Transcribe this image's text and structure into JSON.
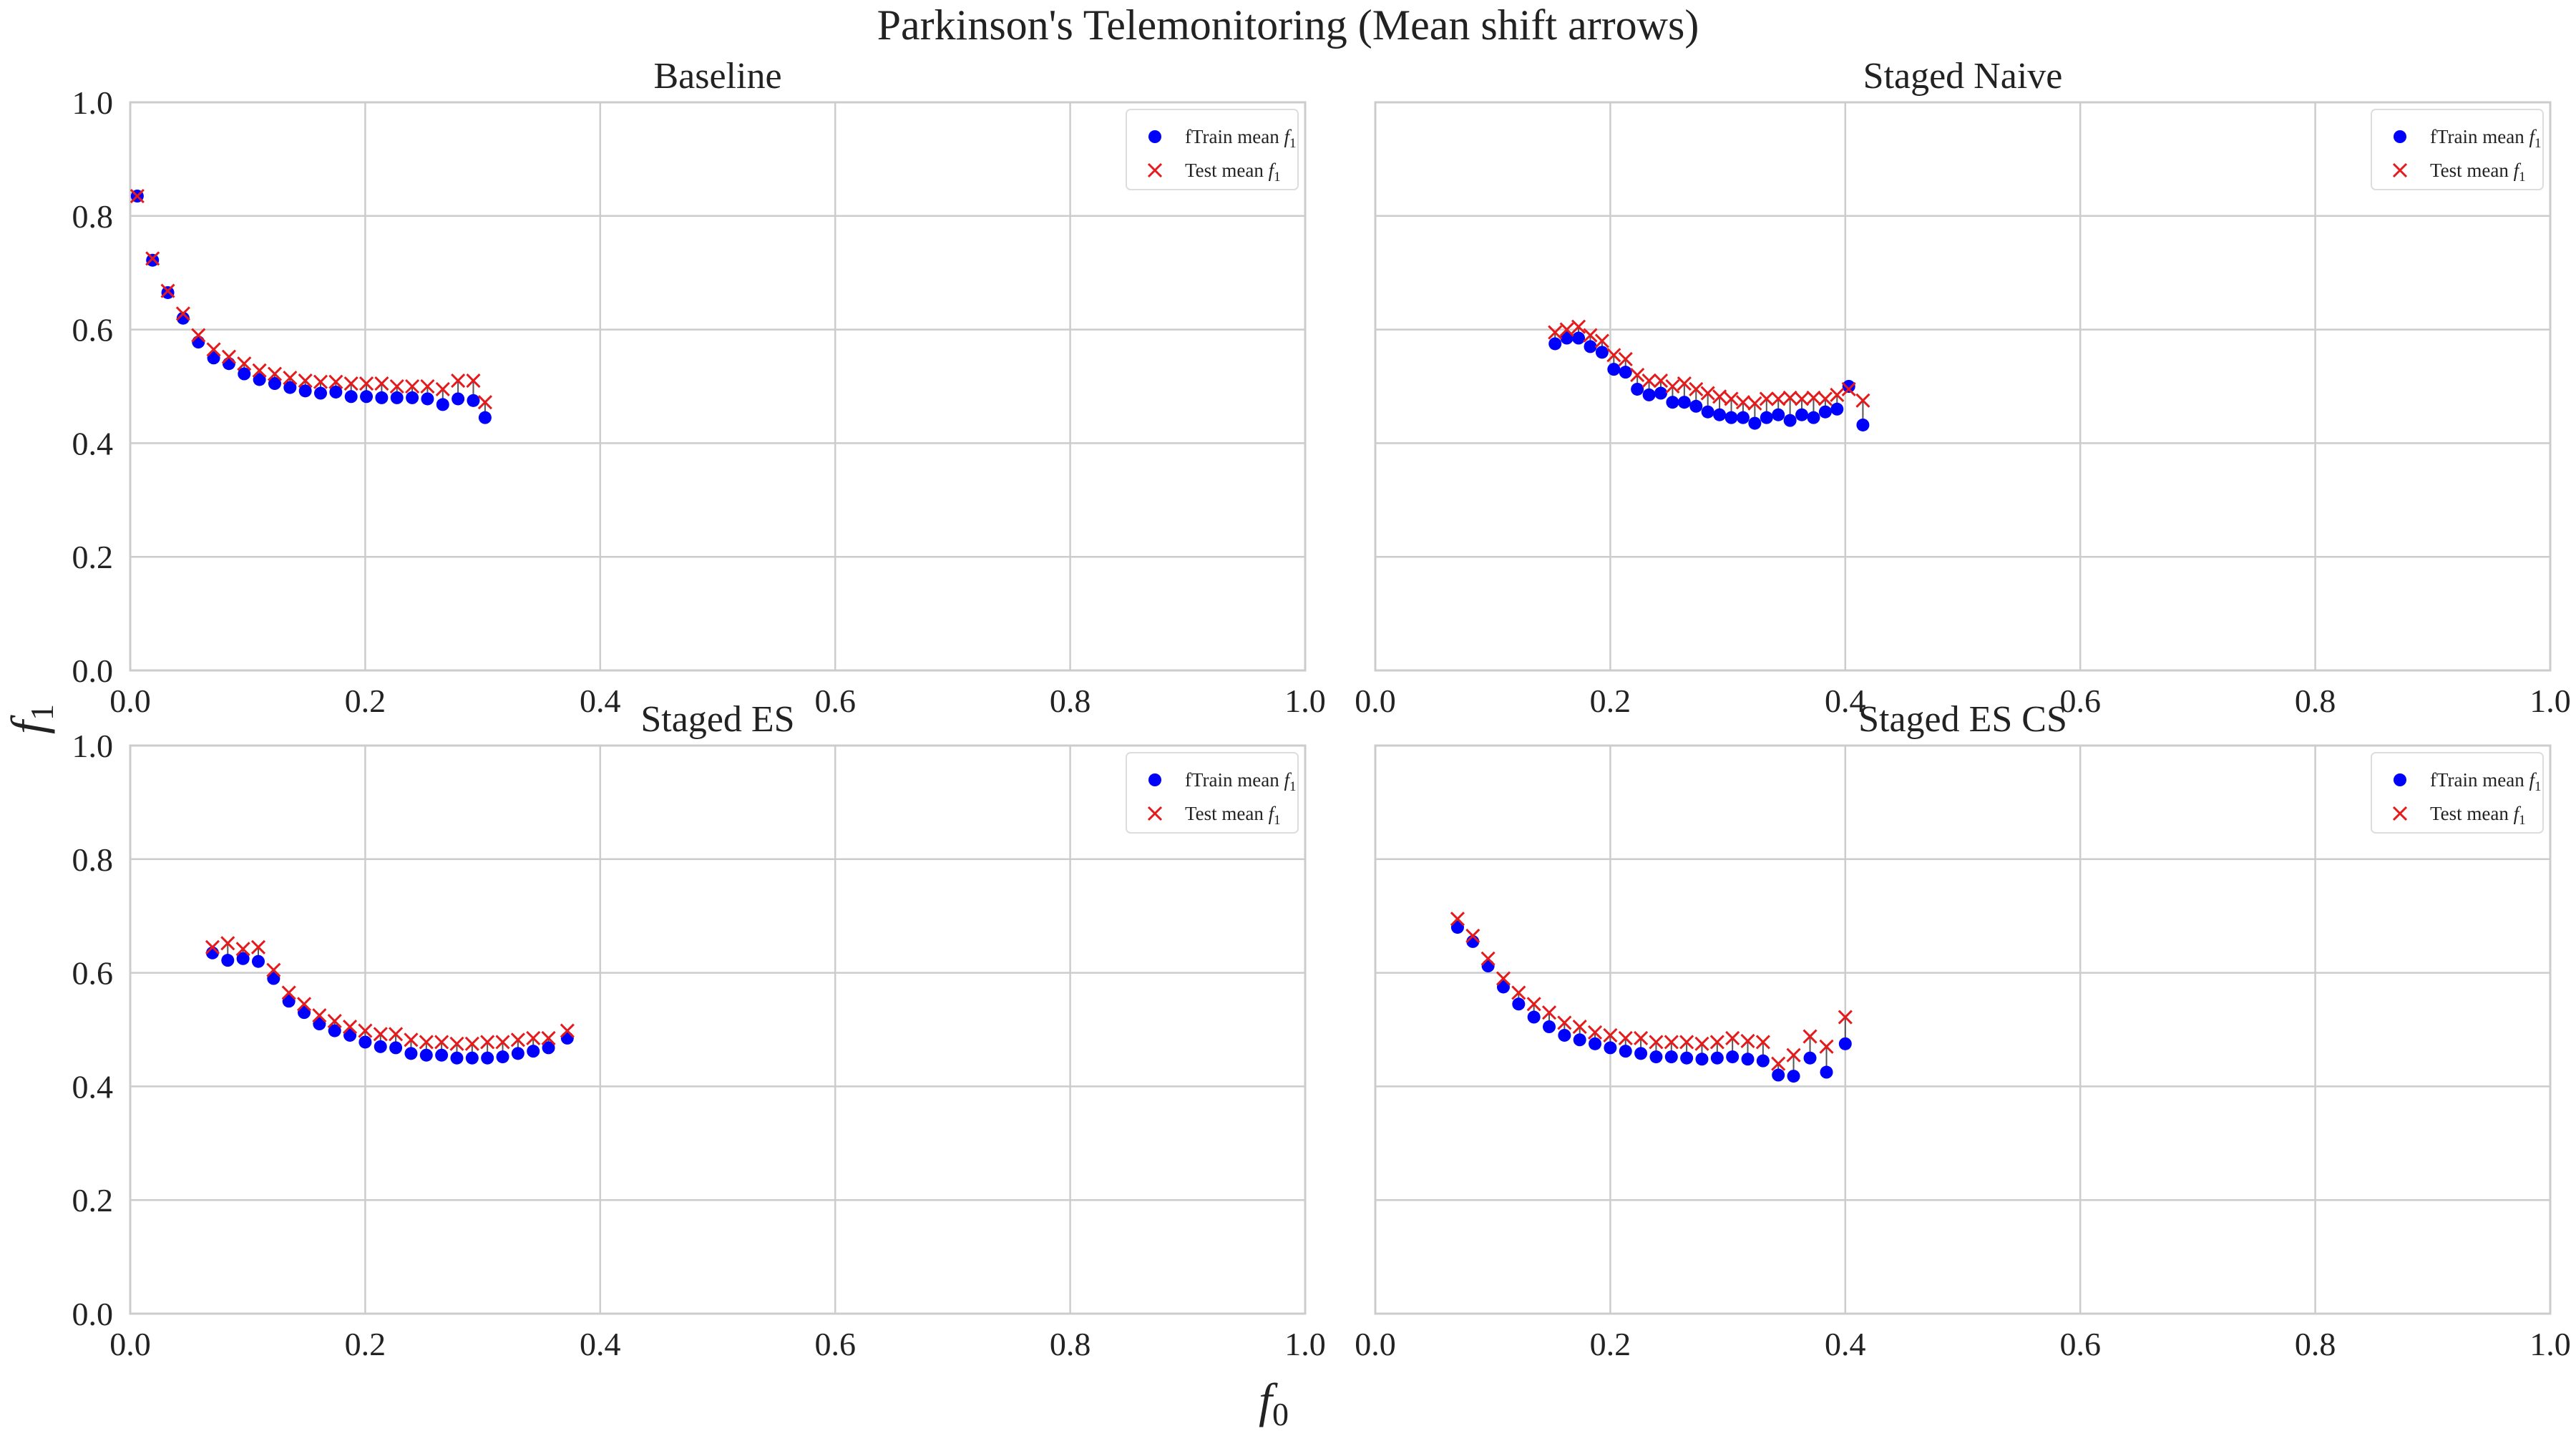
{
  "figure_title": "Parkinson's Telemonitoring (Mean shift arrows)",
  "axis_labels": {
    "x_base": "f",
    "x_sub": "0",
    "y_base": "f",
    "y_sub": "1"
  },
  "legend": {
    "train_label": "fTrain mean ",
    "train_sub_base": "f",
    "train_sub": "1",
    "test_label": "Test mean ",
    "test_sub_base": "f",
    "test_sub": "1"
  },
  "colors": {
    "train": "#0000ff",
    "test": "#e41a1c",
    "arrow": "#555555",
    "grid": "#cccccc",
    "frame": "#cccccc"
  },
  "chart_data": [
    {
      "type": "scatter",
      "title": "Baseline",
      "xlim": [
        0,
        1
      ],
      "ylim": [
        0,
        1
      ],
      "xticks": [
        "0.0",
        "0.2",
        "0.4",
        "0.6",
        "0.8",
        "1.0"
      ],
      "yticks": [
        "0.0",
        "0.2",
        "0.4",
        "0.6",
        "0.8",
        "1.0"
      ],
      "series": [
        {
          "name": "fTrain mean f1",
          "marker": "dot",
          "x": [
            0.006,
            0.019,
            0.032,
            0.045,
            0.058,
            0.071,
            0.084,
            0.097,
            0.11,
            0.123,
            0.136,
            0.149,
            0.162,
            0.175,
            0.188,
            0.201,
            0.214,
            0.227,
            0.24,
            0.253,
            0.266,
            0.279,
            0.292,
            0.302
          ],
          "y": [
            0.835,
            0.722,
            0.665,
            0.62,
            0.578,
            0.55,
            0.54,
            0.522,
            0.512,
            0.505,
            0.498,
            0.492,
            0.488,
            0.49,
            0.482,
            0.482,
            0.48,
            0.48,
            0.48,
            0.478,
            0.468,
            0.478,
            0.475,
            0.445
          ]
        },
        {
          "name": "Test mean f1",
          "marker": "x",
          "x": [
            0.006,
            0.019,
            0.032,
            0.045,
            0.058,
            0.071,
            0.084,
            0.097,
            0.11,
            0.123,
            0.136,
            0.149,
            0.162,
            0.175,
            0.188,
            0.201,
            0.214,
            0.227,
            0.24,
            0.253,
            0.266,
            0.279,
            0.292,
            0.302
          ],
          "y": [
            0.835,
            0.725,
            0.668,
            0.628,
            0.59,
            0.565,
            0.552,
            0.54,
            0.528,
            0.522,
            0.515,
            0.51,
            0.508,
            0.508,
            0.505,
            0.505,
            0.505,
            0.5,
            0.5,
            0.5,
            0.495,
            0.51,
            0.51,
            0.472
          ]
        }
      ]
    },
    {
      "type": "scatter",
      "title": "Staged Naive",
      "xlim": [
        0,
        1
      ],
      "ylim": [
        0,
        1
      ],
      "xticks": [
        "0.0",
        "0.2",
        "0.4",
        "0.6",
        "0.8",
        "1.0"
      ],
      "yticks": [
        "0.0",
        "0.2",
        "0.4",
        "0.6",
        "0.8",
        "1.0"
      ],
      "series": [
        {
          "name": "fTrain mean f1",
          "marker": "dot",
          "x": [
            0.153,
            0.163,
            0.173,
            0.183,
            0.193,
            0.203,
            0.213,
            0.223,
            0.233,
            0.243,
            0.253,
            0.263,
            0.273,
            0.283,
            0.293,
            0.303,
            0.313,
            0.323,
            0.333,
            0.343,
            0.353,
            0.363,
            0.373,
            0.383,
            0.393,
            0.403,
            0.415
          ],
          "y": [
            0.575,
            0.585,
            0.585,
            0.57,
            0.56,
            0.53,
            0.525,
            0.495,
            0.485,
            0.488,
            0.472,
            0.472,
            0.465,
            0.455,
            0.45,
            0.445,
            0.445,
            0.435,
            0.445,
            0.45,
            0.44,
            0.45,
            0.445,
            0.455,
            0.46,
            0.5,
            0.432
          ]
        },
        {
          "name": "Test mean f1",
          "marker": "x",
          "x": [
            0.153,
            0.163,
            0.173,
            0.183,
            0.193,
            0.203,
            0.213,
            0.223,
            0.233,
            0.243,
            0.253,
            0.263,
            0.273,
            0.283,
            0.293,
            0.303,
            0.313,
            0.323,
            0.333,
            0.343,
            0.353,
            0.363,
            0.373,
            0.383,
            0.393,
            0.403,
            0.415
          ],
          "y": [
            0.595,
            0.6,
            0.605,
            0.59,
            0.58,
            0.555,
            0.548,
            0.52,
            0.51,
            0.51,
            0.5,
            0.505,
            0.495,
            0.488,
            0.482,
            0.478,
            0.472,
            0.47,
            0.478,
            0.478,
            0.48,
            0.478,
            0.48,
            0.478,
            0.485,
            0.495,
            0.475
          ]
        }
      ]
    },
    {
      "type": "scatter",
      "title": "Staged ES",
      "xlim": [
        0,
        1
      ],
      "ylim": [
        0,
        1
      ],
      "xticks": [
        "0.0",
        "0.2",
        "0.4",
        "0.6",
        "0.8",
        "1.0"
      ],
      "yticks": [
        "0.0",
        "0.2",
        "0.4",
        "0.6",
        "0.8",
        "1.0"
      ],
      "series": [
        {
          "name": "fTrain mean f1",
          "marker": "dot",
          "x": [
            0.07,
            0.083,
            0.096,
            0.109,
            0.122,
            0.135,
            0.148,
            0.161,
            0.174,
            0.187,
            0.2,
            0.213,
            0.226,
            0.239,
            0.252,
            0.265,
            0.278,
            0.291,
            0.304,
            0.317,
            0.33,
            0.343,
            0.356,
            0.372
          ],
          "y": [
            0.635,
            0.622,
            0.625,
            0.62,
            0.59,
            0.55,
            0.53,
            0.51,
            0.498,
            0.49,
            0.478,
            0.47,
            0.468,
            0.458,
            0.455,
            0.455,
            0.45,
            0.45,
            0.45,
            0.452,
            0.458,
            0.462,
            0.468,
            0.485
          ]
        },
        {
          "name": "Test mean f1",
          "marker": "x",
          "x": [
            0.07,
            0.083,
            0.096,
            0.109,
            0.122,
            0.135,
            0.148,
            0.161,
            0.174,
            0.187,
            0.2,
            0.213,
            0.226,
            0.239,
            0.252,
            0.265,
            0.278,
            0.291,
            0.304,
            0.317,
            0.33,
            0.343,
            0.356,
            0.372
          ],
          "y": [
            0.645,
            0.652,
            0.642,
            0.645,
            0.605,
            0.565,
            0.545,
            0.525,
            0.515,
            0.505,
            0.498,
            0.492,
            0.492,
            0.482,
            0.478,
            0.478,
            0.475,
            0.475,
            0.478,
            0.478,
            0.482,
            0.485,
            0.485,
            0.498
          ]
        }
      ]
    },
    {
      "type": "scatter",
      "title": "Staged ES CS",
      "xlim": [
        0,
        1
      ],
      "ylim": [
        0,
        1
      ],
      "xticks": [
        "0.0",
        "0.2",
        "0.4",
        "0.6",
        "0.8",
        "1.0"
      ],
      "yticks": [
        "0.0",
        "0.2",
        "0.4",
        "0.6",
        "0.8",
        "1.0"
      ],
      "series": [
        {
          "name": "fTrain mean f1",
          "marker": "dot",
          "x": [
            0.07,
            0.083,
            0.096,
            0.109,
            0.122,
            0.135,
            0.148,
            0.161,
            0.174,
            0.187,
            0.2,
            0.213,
            0.226,
            0.239,
            0.252,
            0.265,
            0.278,
            0.291,
            0.304,
            0.317,
            0.33,
            0.343,
            0.356,
            0.37,
            0.384,
            0.4
          ],
          "y": [
            0.68,
            0.655,
            0.612,
            0.575,
            0.545,
            0.522,
            0.505,
            0.49,
            0.482,
            0.475,
            0.468,
            0.462,
            0.458,
            0.452,
            0.452,
            0.45,
            0.448,
            0.45,
            0.452,
            0.448,
            0.445,
            0.42,
            0.418,
            0.45,
            0.425,
            0.475
          ]
        },
        {
          "name": "Test mean f1",
          "marker": "x",
          "x": [
            0.07,
            0.083,
            0.096,
            0.109,
            0.122,
            0.135,
            0.148,
            0.161,
            0.174,
            0.187,
            0.2,
            0.213,
            0.226,
            0.239,
            0.252,
            0.265,
            0.278,
            0.291,
            0.304,
            0.317,
            0.33,
            0.343,
            0.356,
            0.37,
            0.384,
            0.4
          ],
          "y": [
            0.695,
            0.665,
            0.625,
            0.59,
            0.565,
            0.545,
            0.53,
            0.512,
            0.505,
            0.495,
            0.49,
            0.485,
            0.485,
            0.478,
            0.478,
            0.478,
            0.475,
            0.478,
            0.485,
            0.48,
            0.478,
            0.44,
            0.455,
            0.488,
            0.47,
            0.522
          ]
        }
      ]
    }
  ]
}
